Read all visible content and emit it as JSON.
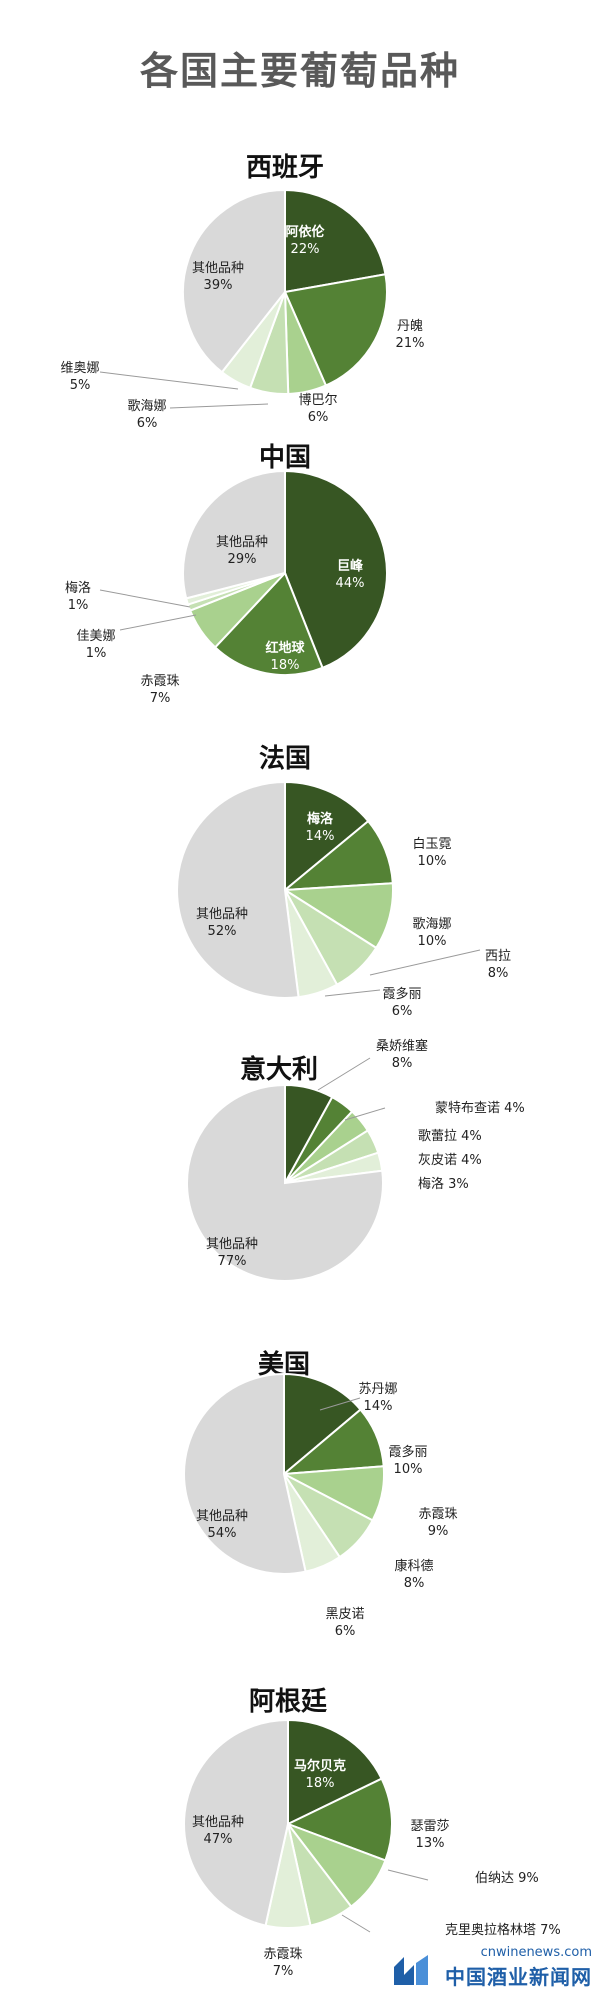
{
  "page": {
    "title": "各国主要葡萄品种"
  },
  "watermark": {
    "domain": "cnwinenews.com",
    "name": "中国酒业新闻网"
  },
  "colors": {
    "dark": "#375623",
    "mid": "#548235",
    "light": "#a9d18e",
    "lighter": "#c5e0b3",
    "lightest": "#e2efd9",
    "other": "#d9d9d9"
  },
  "chart_data": [
    {
      "type": "pie",
      "title": "西班牙",
      "slices": [
        {
          "name": "阿依伦",
          "value": 22,
          "label": "22%",
          "color": "#375623"
        },
        {
          "name": "丹魄",
          "value": 21,
          "label": "21%",
          "color": "#548235"
        },
        {
          "name": "博巴尔",
          "value": 6,
          "label": "6%",
          "color": "#a9d18e"
        },
        {
          "name": "歌海娜",
          "value": 6,
          "label": "6%",
          "color": "#c5e0b3"
        },
        {
          "name": "维奥娜",
          "value": 5,
          "label": "5%",
          "color": "#e2efd9"
        },
        {
          "name": "其他品种",
          "value": 39,
          "label": "39%",
          "color": "#d9d9d9"
        }
      ]
    },
    {
      "type": "pie",
      "title": "中国",
      "slices": [
        {
          "name": "巨峰",
          "value": 44,
          "label": "44%",
          "color": "#375623"
        },
        {
          "name": "红地球",
          "value": 18,
          "label": "18%",
          "color": "#548235"
        },
        {
          "name": "赤霞珠",
          "value": 7,
          "label": "7%",
          "color": "#a9d18e"
        },
        {
          "name": "佳美娜",
          "value": 1,
          "label": "1%",
          "color": "#c5e0b3"
        },
        {
          "name": "梅洛",
          "value": 1,
          "label": "1%",
          "color": "#e2efd9"
        },
        {
          "name": "其他品种",
          "value": 29,
          "label": "29%",
          "color": "#d9d9d9"
        }
      ]
    },
    {
      "type": "pie",
      "title": "法国",
      "slices": [
        {
          "name": "梅洛",
          "value": 14,
          "label": "14%",
          "color": "#375623"
        },
        {
          "name": "白玉霓",
          "value": 10,
          "label": "10%",
          "color": "#548235"
        },
        {
          "name": "歌海娜",
          "value": 10,
          "label": "10%",
          "color": "#a9d18e"
        },
        {
          "name": "西拉",
          "value": 8,
          "label": "8%",
          "color": "#c5e0b3"
        },
        {
          "name": "霞多丽",
          "value": 6,
          "label": "6%",
          "color": "#e2efd9"
        },
        {
          "name": "其他品种",
          "value": 52,
          "label": "52%",
          "color": "#d9d9d9"
        }
      ]
    },
    {
      "type": "pie",
      "title": "意大利",
      "slices": [
        {
          "name": "桑娇维塞",
          "value": 8,
          "label": "8%",
          "color": "#375623"
        },
        {
          "name": "蒙特布查诺",
          "value": 4,
          "label": "4%",
          "color": "#548235"
        },
        {
          "name": "歌蕾拉",
          "value": 4,
          "label": "4%",
          "color": "#a9d18e"
        },
        {
          "name": "灰皮诺",
          "value": 4,
          "label": "4%",
          "color": "#c5e0b3"
        },
        {
          "name": "梅洛",
          "value": 3,
          "label": "3%",
          "color": "#e2efd9"
        },
        {
          "name": "其他品种",
          "value": 77,
          "label": "77%",
          "color": "#d9d9d9"
        }
      ]
    },
    {
      "type": "pie",
      "title": "美国",
      "slices": [
        {
          "name": "苏丹娜",
          "value": 14,
          "label": "14%",
          "color": "#375623"
        },
        {
          "name": "霞多丽",
          "value": 10,
          "label": "10%",
          "color": "#548235"
        },
        {
          "name": "赤霞珠",
          "value": 9,
          "label": "9%",
          "color": "#a9d18e"
        },
        {
          "name": "康科德",
          "value": 8,
          "label": "8%",
          "color": "#c5e0b3"
        },
        {
          "name": "黑皮诺",
          "value": 6,
          "label": "6%",
          "color": "#e2efd9"
        },
        {
          "name": "其他品种",
          "value": 54,
          "label": "54%",
          "color": "#d9d9d9"
        }
      ]
    },
    {
      "type": "pie",
      "title": "阿根廷",
      "slices": [
        {
          "name": "马尔贝克",
          "value": 18,
          "label": "18%",
          "color": "#375623"
        },
        {
          "name": "瑟雷莎",
          "value": 13,
          "label": "13%",
          "color": "#548235"
        },
        {
          "name": "伯纳达",
          "value": 9,
          "label": "9%",
          "color": "#a9d18e"
        },
        {
          "name": "克里奥拉格林塔",
          "value": 7,
          "label": "7%",
          "color": "#c5e0b3"
        },
        {
          "name": "赤霞珠",
          "value": 7,
          "label": "7%",
          "color": "#e2efd9"
        },
        {
          "name": "其他品种",
          "value": 47,
          "label": "47%",
          "color": "#d9d9d9"
        }
      ]
    }
  ]
}
